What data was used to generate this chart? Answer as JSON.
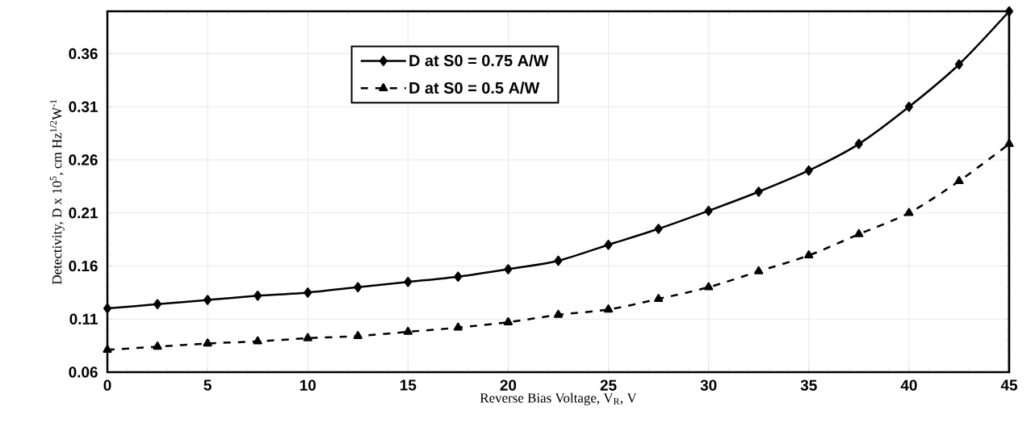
{
  "chart_data": {
    "type": "line",
    "xlabel": "Reverse Bias Voltage, V$_{R}$, V",
    "ylabel": "Detectivity, D x 10$^{5}$, cm Hz$^{1/2}$W$^{-1}$",
    "x": [
      0,
      2.5,
      5,
      7.5,
      10,
      12.5,
      15,
      17.5,
      20,
      22.5,
      25,
      27.5,
      30,
      32.5,
      35,
      37.5,
      40,
      42.5,
      45
    ],
    "series": [
      {
        "name": "D at S0 = 0.75 A/W",
        "color": "#000000",
        "marker": "diamond",
        "line_style": "solid",
        "values": [
          0.12,
          0.124,
          0.128,
          0.132,
          0.135,
          0.14,
          0.145,
          0.15,
          0.157,
          0.165,
          0.18,
          0.195,
          0.212,
          0.23,
          0.25,
          0.275,
          0.31,
          0.35,
          0.4
        ]
      },
      {
        "name": "D at S0 = 0.5 A/W",
        "color": "#000000",
        "marker": "triangle",
        "line_style": "dashed",
        "values": [
          0.081,
          0.084,
          0.087,
          0.089,
          0.092,
          0.094,
          0.098,
          0.102,
          0.107,
          0.114,
          0.119,
          0.129,
          0.14,
          0.155,
          0.17,
          0.19,
          0.21,
          0.24,
          0.275
        ]
      }
    ],
    "xlim": [
      0,
      45
    ],
    "ylim": [
      0.06,
      0.4
    ],
    "xticks": [
      0,
      5,
      10,
      15,
      20,
      25,
      30,
      35,
      40,
      45
    ],
    "yticks": [
      0.06,
      0.11,
      0.16,
      0.21,
      0.26,
      0.31,
      0.36
    ],
    "grid": true,
    "legend": "top"
  }
}
